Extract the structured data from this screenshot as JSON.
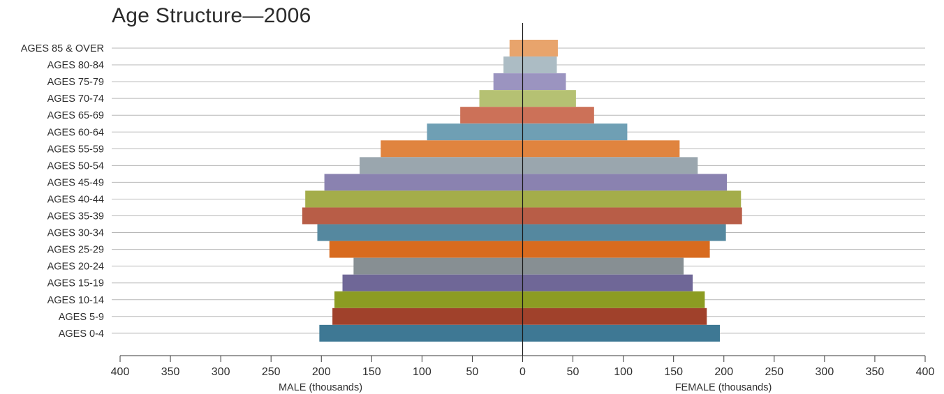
{
  "chart_data": {
    "type": "bar",
    "title": "Age Structure—2006",
    "categories": [
      "AGES 85 & OVER",
      "AGES 80-84",
      "AGES 75-79",
      "AGES 70-74",
      "AGES 65-69",
      "AGES 60-64",
      "AGES 55-59",
      "AGES 50-54",
      "AGES 45-49",
      "AGES 40-44",
      "AGES 35-39",
      "AGES 30-34",
      "AGES 25-29",
      "AGES 20-24",
      "AGES 15-19",
      "AGES 10-14",
      "AGES 5-9",
      "AGES 0-4"
    ],
    "series": [
      {
        "name": "MALE (thousands)",
        "values": [
          13,
          19,
          29,
          43,
          62,
          95,
          141,
          162,
          197,
          216,
          219,
          204,
          192,
          168,
          179,
          187,
          189,
          202
        ]
      },
      {
        "name": "FEMALE (thousands)",
        "values": [
          35,
          34,
          43,
          53,
          71,
          104,
          156,
          174,
          203,
          217,
          218,
          202,
          186,
          160,
          169,
          181,
          183,
          196
        ]
      }
    ],
    "bar_colors": [
      "#e8a46c",
      "#acbcc4",
      "#9b94c0",
      "#b5c173",
      "#cc7158",
      "#6f9fb4",
      "#e0843f",
      "#9aa6ae",
      "#8a82b0",
      "#a4ad4a",
      "#b85d47",
      "#55889f",
      "#d86b1f",
      "#878f93",
      "#6f6797",
      "#8c9c22",
      "#a0412b",
      "#3e7894"
    ],
    "x_ticks": [
      "400",
      "350",
      "300",
      "250",
      "200",
      "150",
      "100",
      "50",
      "0",
      "50",
      "100",
      "150",
      "200",
      "250",
      "300",
      "350",
      "400"
    ],
    "xlabel_left": "MALE (thousands)",
    "xlabel_right": "FEMALE (thousands)",
    "xlim": [
      -400,
      400
    ],
    "grid": true
  }
}
